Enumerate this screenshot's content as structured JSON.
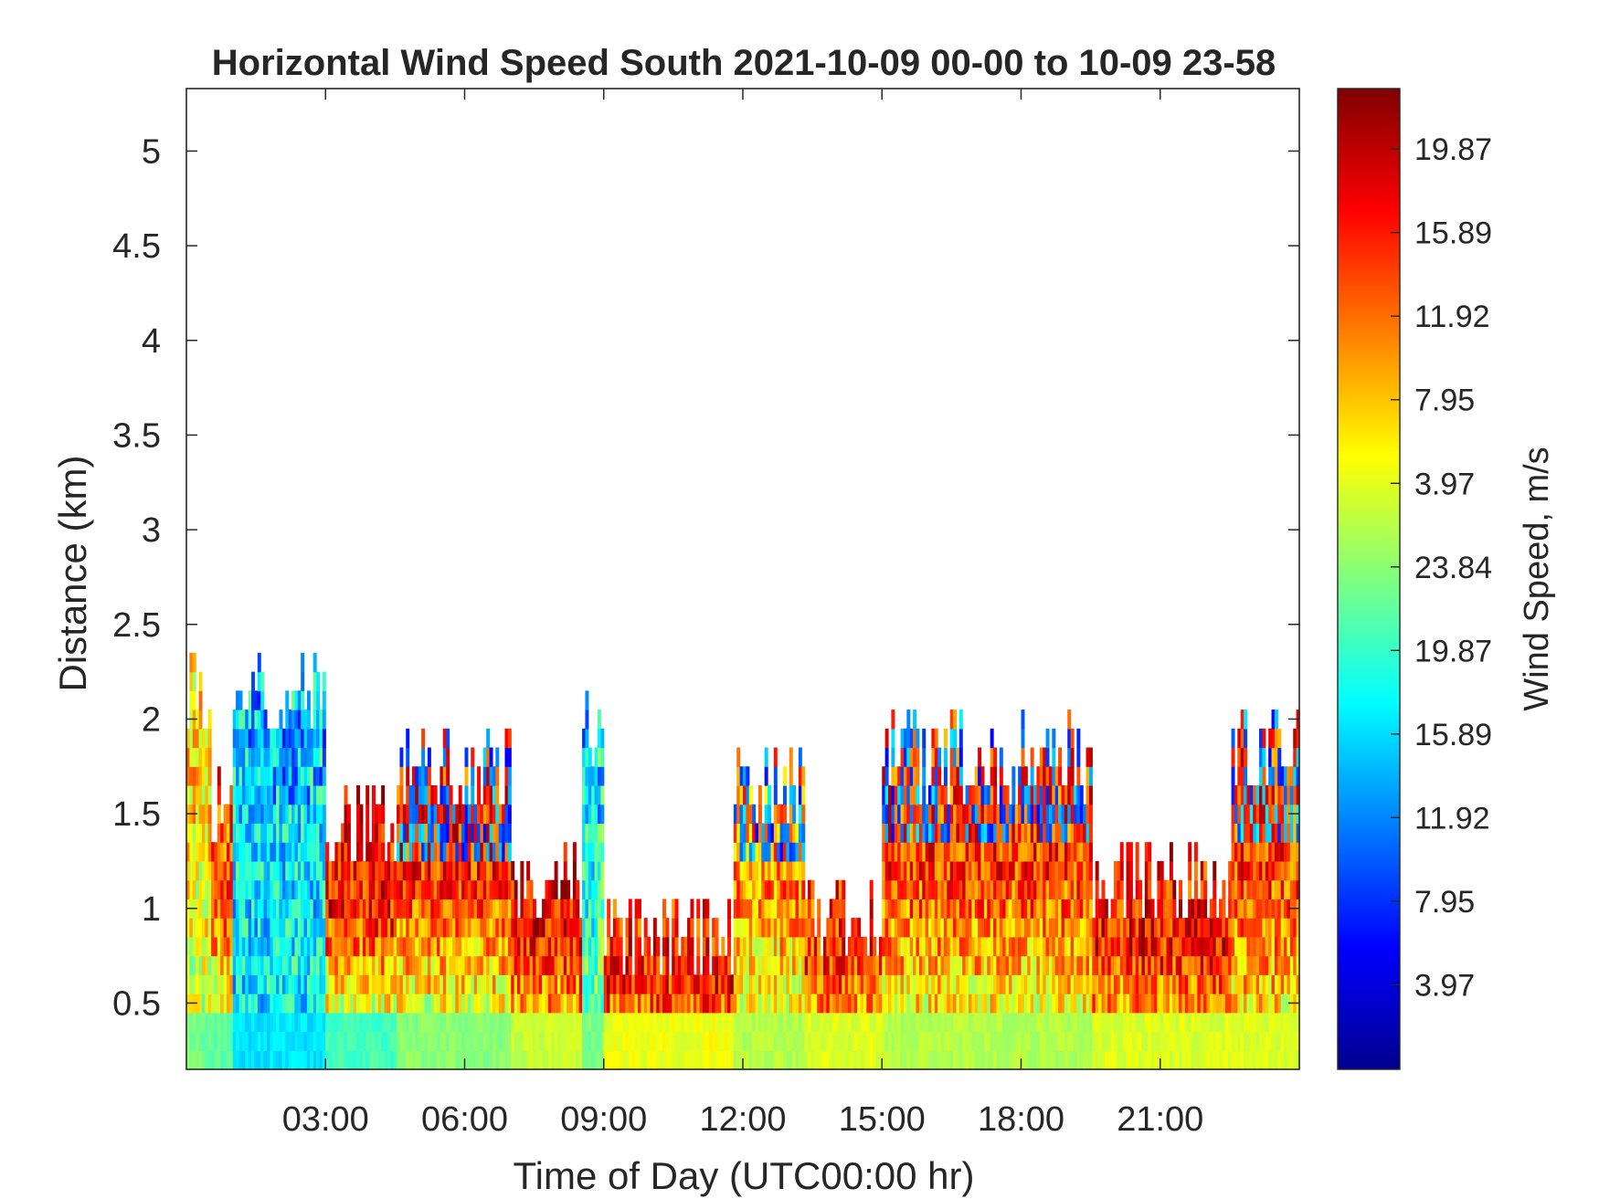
{
  "chart_data": {
    "type": "heatmap",
    "title": "Horizontal Wind Speed South 2021-10-09 00-00 to 10-09 23-58",
    "xlabel": "Time of Day (UTC00:00 hr)",
    "ylabel": "Distance (km)",
    "colorbar_label": "Wind Speed, m/s",
    "colormap": "jet",
    "grid": false,
    "xlim_hours": [
      0,
      24
    ],
    "ylim_km": [
      0.15,
      5.33
    ],
    "x_ticks": [
      {
        "hour": 3,
        "label": "03:00"
      },
      {
        "hour": 6,
        "label": "06:00"
      },
      {
        "hour": 9,
        "label": "09:00"
      },
      {
        "hour": 12,
        "label": "12:00"
      },
      {
        "hour": 15,
        "label": "15:00"
      },
      {
        "hour": 18,
        "label": "18:00"
      },
      {
        "hour": 21,
        "label": "21:00"
      }
    ],
    "y_ticks": [
      {
        "km": 0.5,
        "label": "0.5"
      },
      {
        "km": 1,
        "label": "1"
      },
      {
        "km": 1.5,
        "label": "1.5"
      },
      {
        "km": 2,
        "label": "2"
      },
      {
        "km": 2.5,
        "label": "2.5"
      },
      {
        "km": 3,
        "label": "3"
      },
      {
        "km": 3.5,
        "label": "3.5"
      },
      {
        "km": 4,
        "label": "4"
      },
      {
        "km": 4.5,
        "label": "4.5"
      },
      {
        "km": 5,
        "label": "5"
      }
    ],
    "colorbar_ticks": [
      {
        "fraction": 0.0862,
        "label": "3.97"
      },
      {
        "fraction": 0.1715,
        "label": "7.95"
      },
      {
        "fraction": 0.2567,
        "label": "11.92"
      },
      {
        "fraction": 0.3419,
        "label": "15.89"
      },
      {
        "fraction": 0.4271,
        "label": "19.87"
      },
      {
        "fraction": 0.5123,
        "label": "23.84"
      },
      {
        "fraction": 0.5975,
        "label": "3.97"
      },
      {
        "fraction": 0.6828,
        "label": "7.95"
      },
      {
        "fraction": 0.768,
        "label": "11.92"
      },
      {
        "fraction": 0.8532,
        "label": "15.89"
      },
      {
        "fraction": 0.9384,
        "label": "19.87"
      }
    ],
    "range_bins_km": [
      0.15,
      0.25,
      0.35,
      0.45,
      0.55,
      0.65,
      0.75,
      0.85,
      0.95,
      1.05,
      1.15,
      1.25,
      1.35,
      1.45,
      1.55,
      1.65,
      1.75,
      1.85,
      1.95,
      2.05,
      2.15,
      2.25,
      2.35
    ],
    "profile_segments": [
      {
        "start_h": 0.0,
        "end_h": 0.5,
        "top_km": 2.1,
        "low_value": 0.5,
        "high_value": 0.66,
        "blue_top": false
      },
      {
        "start_h": 0.5,
        "end_h": 1.0,
        "top_km": 1.5,
        "low_value": 0.48,
        "high_value": 0.8,
        "blue_top": false
      },
      {
        "start_h": 1.0,
        "end_h": 3.0,
        "top_km": 2.1,
        "low_value": 0.36,
        "high_value": 0.36,
        "blue_top": true
      },
      {
        "start_h": 3.0,
        "end_h": 4.5,
        "top_km": 1.4,
        "low_value": 0.45,
        "high_value": 0.86,
        "blue_top": false
      },
      {
        "start_h": 4.5,
        "end_h": 7.0,
        "top_km": 1.7,
        "low_value": 0.52,
        "high_value": 0.84,
        "blue_top": true
      },
      {
        "start_h": 7.0,
        "end_h": 8.5,
        "top_km": 1.1,
        "low_value": 0.58,
        "high_value": 0.86,
        "blue_top": false
      },
      {
        "start_h": 8.5,
        "end_h": 9.0,
        "top_km": 1.9,
        "low_value": 0.5,
        "high_value": 0.4,
        "blue_top": true
      },
      {
        "start_h": 9.0,
        "end_h": 11.8,
        "top_km": 0.8,
        "low_value": 0.62,
        "high_value": 0.85,
        "blue_top": false
      },
      {
        "start_h": 11.8,
        "end_h": 13.3,
        "top_km": 1.6,
        "low_value": 0.56,
        "high_value": 0.74,
        "blue_top": true
      },
      {
        "start_h": 13.3,
        "end_h": 15.0,
        "top_km": 0.9,
        "low_value": 0.6,
        "high_value": 0.82,
        "blue_top": false
      },
      {
        "start_h": 15.0,
        "end_h": 19.5,
        "top_km": 1.75,
        "low_value": 0.56,
        "high_value": 0.82,
        "blue_top": true
      },
      {
        "start_h": 19.5,
        "end_h": 22.5,
        "top_km": 1.1,
        "low_value": 0.6,
        "high_value": 0.86,
        "blue_top": false
      },
      {
        "start_h": 22.5,
        "end_h": 24.0,
        "top_km": 1.8,
        "low_value": 0.6,
        "high_value": 0.82,
        "blue_top": true
      }
    ]
  }
}
